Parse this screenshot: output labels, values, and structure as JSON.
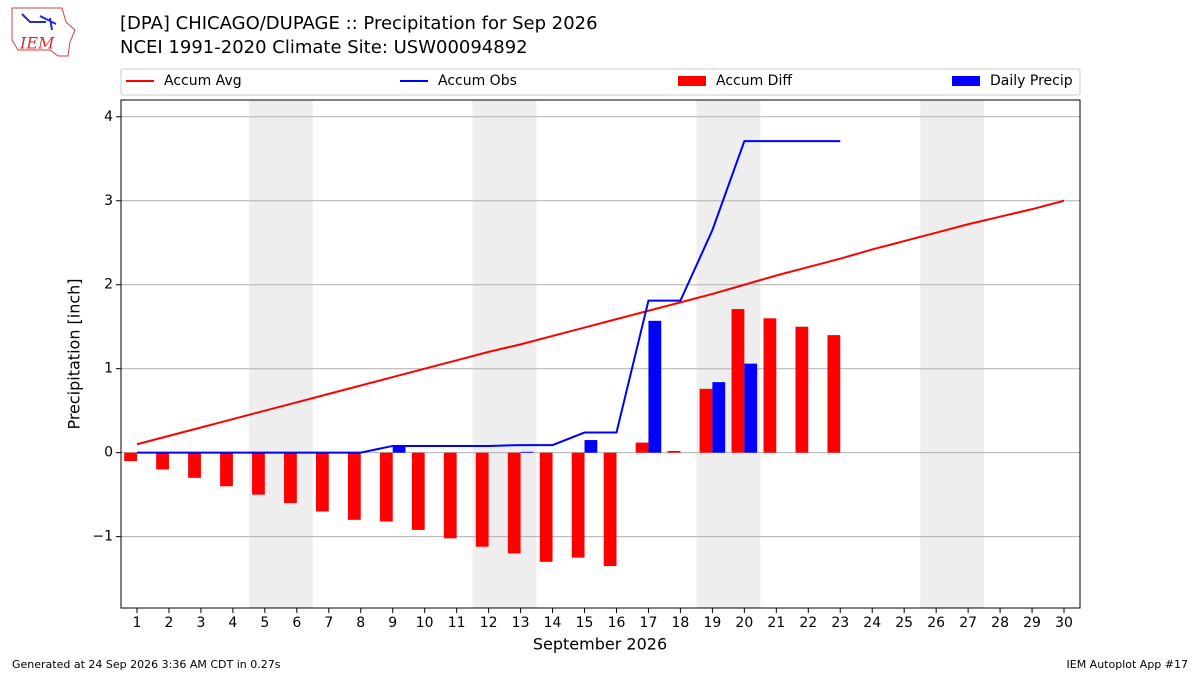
{
  "logo": "IEM",
  "footer_left": "Generated at 24 Sep 2026 3:36 AM CDT in 0.27s",
  "footer_right": "IEM Autoplot App #17",
  "chart_data": {
    "type": "bar",
    "title": "[DPA] CHICAGO/DUPAGE :: Precipitation for Sep 2026",
    "subtitle": "NCEI 1991-2020 Climate Site: USW00094892",
    "xlabel": "September 2026",
    "ylabel": "Precipitation [inch]",
    "x": [
      1,
      2,
      3,
      4,
      5,
      6,
      7,
      8,
      9,
      10,
      11,
      12,
      13,
      14,
      15,
      16,
      17,
      18,
      19,
      20,
      21,
      22,
      23,
      24,
      25,
      26,
      27,
      28,
      29,
      30
    ],
    "xlim": [
      0.5,
      30.5
    ],
    "xticks": [
      1,
      2,
      3,
      4,
      5,
      6,
      7,
      8,
      9,
      10,
      11,
      12,
      13,
      14,
      15,
      16,
      17,
      18,
      19,
      20,
      21,
      22,
      23,
      24,
      25,
      26,
      27,
      28,
      29,
      30
    ],
    "ylim": [
      -1.85,
      4.2
    ],
    "yticks": [
      {
        "value": -1,
        "label": "−1"
      },
      0,
      1,
      2,
      3,
      4
    ],
    "grid": true,
    "shaded_spans": [
      [
        4.5,
        6.5
      ],
      [
        11.5,
        13.5
      ],
      [
        18.5,
        20.5
      ],
      [
        25.5,
        27.5
      ]
    ],
    "series": [
      {
        "name": "Accum Avg",
        "type": "line",
        "color": "#ff0000",
        "values": [
          0.1,
          0.2,
          0.3,
          0.4,
          0.5,
          0.6,
          0.7,
          0.8,
          0.9,
          1.0,
          1.1,
          1.2,
          1.29,
          1.39,
          1.49,
          1.59,
          1.69,
          1.79,
          1.89,
          2.0,
          2.11,
          2.21,
          2.31,
          2.42,
          2.52,
          2.62,
          2.72,
          2.81,
          2.9,
          3.0
        ]
      },
      {
        "name": "Accum Obs",
        "type": "line",
        "color": "#0000ff",
        "values": [
          0,
          0,
          0,
          0,
          0,
          0,
          0,
          0,
          0.08,
          0.08,
          0.08,
          0.08,
          0.09,
          0.09,
          0.24,
          0.24,
          1.81,
          1.81,
          2.65,
          3.71,
          3.71,
          3.71,
          3.71,
          null,
          null,
          null,
          null,
          null,
          null,
          null
        ]
      },
      {
        "name": "Accum Diff",
        "type": "bar",
        "color": "#ff0000",
        "values": [
          -0.1,
          -0.2,
          -0.3,
          -0.4,
          -0.5,
          -0.6,
          -0.7,
          -0.8,
          -0.82,
          -0.92,
          -1.02,
          -1.12,
          -1.2,
          -1.3,
          -1.25,
          -1.35,
          0.12,
          0.02,
          0.76,
          1.71,
          1.6,
          1.5,
          1.4,
          null,
          null,
          null,
          null,
          null,
          null,
          null
        ]
      },
      {
        "name": "Daily Precip",
        "type": "bar",
        "color": "#0000ff",
        "values": [
          0,
          0,
          0,
          0,
          0,
          0,
          0,
          0,
          0.08,
          0,
          0,
          0,
          0.01,
          0,
          0.15,
          0,
          1.57,
          0,
          0.84,
          1.06,
          0,
          0,
          0,
          null,
          null,
          null,
          null,
          null,
          null,
          null
        ]
      }
    ]
  }
}
